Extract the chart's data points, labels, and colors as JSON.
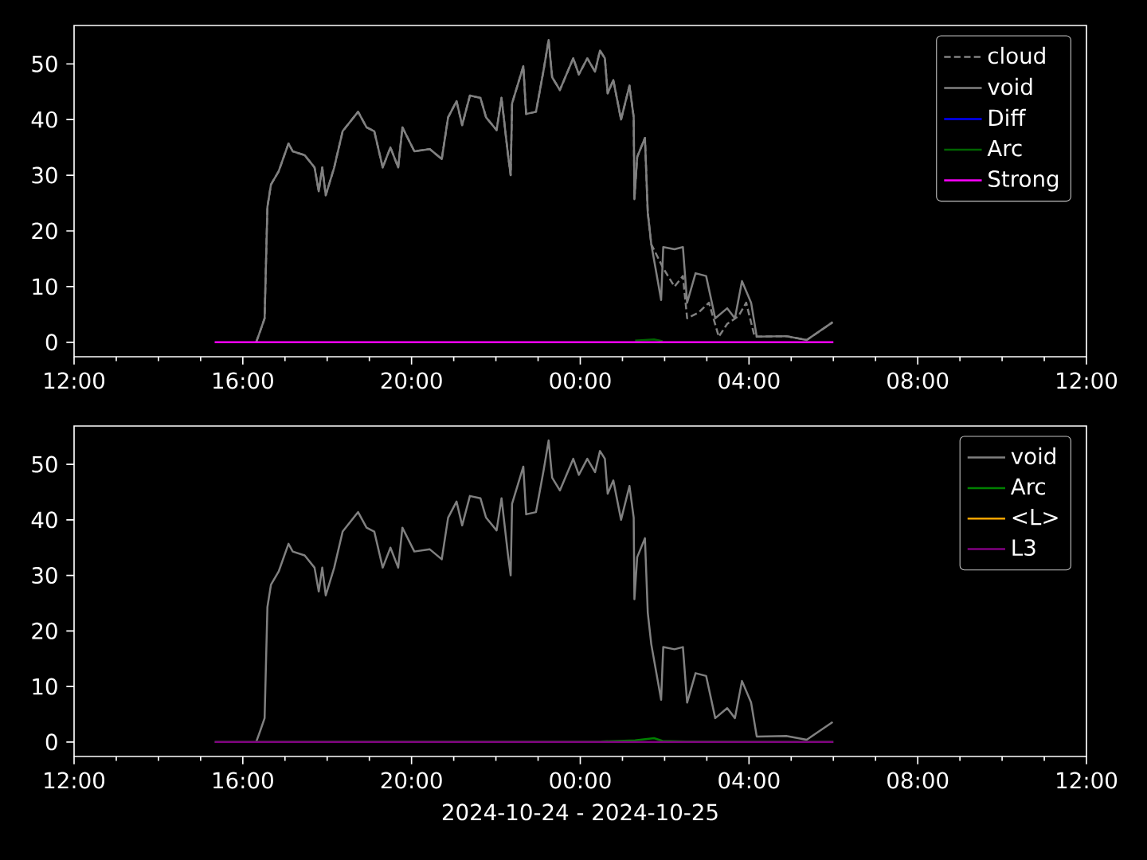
{
  "chart_data": [
    {
      "type": "line",
      "xlim": [
        "2024-10-24T12:00",
        "2024-10-25T12:00"
      ],
      "ylim": [
        -2.6,
        56.9
      ],
      "xticks": [
        {
          "value": "2024-10-24T12:00",
          "label": "12:00"
        },
        {
          "value": "2024-10-24T16:00",
          "label": "16:00"
        },
        {
          "value": "2024-10-24T20:00",
          "label": "20:00"
        },
        {
          "value": "2024-10-25T00:00",
          "label": "00:00"
        },
        {
          "value": "2024-10-25T04:00",
          "label": "04:00"
        },
        {
          "value": "2024-10-25T08:00",
          "label": "08:00"
        },
        {
          "value": "2024-10-25T12:00",
          "label": "12:00"
        }
      ],
      "yticks": [
        0,
        10,
        20,
        30,
        40,
        50
      ],
      "legend": "top right",
      "series": [
        {
          "name": "cloud",
          "color": "#808080",
          "line_style": "dashed",
          "x": [
            "2024-10-24T16:19",
            "2024-10-24T16:25",
            "2024-10-24T16:31",
            "2024-10-24T16:35",
            "2024-10-24T16:40",
            "2024-10-24T16:51",
            "2024-10-24T17:05",
            "2024-10-24T17:11",
            "2024-10-24T17:28",
            "2024-10-24T17:42",
            "2024-10-24T17:48",
            "2024-10-24T17:53",
            "2024-10-24T17:58",
            "2024-10-24T18:10",
            "2024-10-24T18:22",
            "2024-10-24T18:44",
            "2024-10-24T18:56",
            "2024-10-24T19:07",
            "2024-10-24T19:19",
            "2024-10-24T19:30",
            "2024-10-24T19:41",
            "2024-10-24T19:47",
            "2024-10-24T20:04",
            "2024-10-24T20:26",
            "2024-10-24T20:43",
            "2024-10-24T20:52",
            "2024-10-24T21:04",
            "2024-10-24T21:12",
            "2024-10-24T21:23",
            "2024-10-24T21:38",
            "2024-10-24T21:46",
            "2024-10-24T22:01",
            "2024-10-24T22:08",
            "2024-10-24T22:17",
            "2024-10-24T22:21",
            "2024-10-24T22:23",
            "2024-10-24T22:39",
            "2024-10-24T22:43",
            "2024-10-24T22:57",
            "2024-10-24T23:08",
            "2024-10-24T23:15",
            "2024-10-24T23:20",
            "2024-10-24T23:31",
            "2024-10-24T23:50",
            "2024-10-24T23:58",
            "2024-10-25T00:10",
            "2024-10-25T00:21",
            "2024-10-25T00:28",
            "2024-10-25T00:35",
            "2024-10-25T00:39",
            "2024-10-25T00:47",
            "2024-10-25T00:58",
            "2024-10-25T01:10",
            "2024-10-25T01:16",
            "2024-10-25T01:17",
            "2024-10-25T01:21",
            "2024-10-25T01:32",
            "2024-10-25T01:36",
            "2024-10-25T01:41",
            "2024-10-25T01:58",
            "2024-10-25T02:14",
            "2024-10-25T02:26",
            "2024-10-25T02:32",
            "2024-10-25T02:48",
            "2024-10-25T03:03",
            "2024-10-25T03:17",
            "2024-10-25T03:29",
            "2024-10-25T03:45",
            "2024-10-25T03:56",
            "2024-10-25T04:08",
            "2024-10-25T04:53",
            "2024-10-25T05:22",
            "2024-10-25T05:59"
          ],
          "values": [
            0,
            2.1,
            4.3,
            24.3,
            28.3,
            30.7,
            35.7,
            34.3,
            33.6,
            31.4,
            27.1,
            31.4,
            26.4,
            31.4,
            37.9,
            41.4,
            38.6,
            37.9,
            31.4,
            35.0,
            31.4,
            38.6,
            34.3,
            34.7,
            32.9,
            40.4,
            43.3,
            39.0,
            44.3,
            43.9,
            40.4,
            38.1,
            43.9,
            33.9,
            30.0,
            42.9,
            49.6,
            41.0,
            41.4,
            49.0,
            54.3,
            47.6,
            45.3,
            51.0,
            48.1,
            51.0,
            48.6,
            52.4,
            51.0,
            44.7,
            47.1,
            40.0,
            46.1,
            40.4,
            25.7,
            33.3,
            36.7,
            23.3,
            17.6,
            13.3,
            10.0,
            11.9,
            4.3,
            5.3,
            7.1,
            1.0,
            3.3,
            4.7,
            7.1,
            1.0,
            1.1,
            0.4,
            3.6
          ]
        },
        {
          "name": "void",
          "color": "#808080",
          "x": [
            "2024-10-24T16:19",
            "2024-10-24T16:25",
            "2024-10-24T16:31",
            "2024-10-24T16:35",
            "2024-10-24T16:40",
            "2024-10-24T16:51",
            "2024-10-24T17:05",
            "2024-10-24T17:11",
            "2024-10-24T17:28",
            "2024-10-24T17:42",
            "2024-10-24T17:48",
            "2024-10-24T17:53",
            "2024-10-24T17:58",
            "2024-10-24T18:10",
            "2024-10-24T18:22",
            "2024-10-24T18:44",
            "2024-10-24T18:56",
            "2024-10-24T19:07",
            "2024-10-24T19:19",
            "2024-10-24T19:30",
            "2024-10-24T19:41",
            "2024-10-24T19:47",
            "2024-10-24T20:04",
            "2024-10-24T20:26",
            "2024-10-24T20:43",
            "2024-10-24T20:52",
            "2024-10-24T21:04",
            "2024-10-24T21:12",
            "2024-10-24T21:23",
            "2024-10-24T21:38",
            "2024-10-24T21:46",
            "2024-10-24T22:01",
            "2024-10-24T22:08",
            "2024-10-24T22:17",
            "2024-10-24T22:21",
            "2024-10-24T22:23",
            "2024-10-24T22:39",
            "2024-10-24T22:43",
            "2024-10-24T22:57",
            "2024-10-24T23:08",
            "2024-10-24T23:15",
            "2024-10-24T23:20",
            "2024-10-24T23:31",
            "2024-10-24T23:50",
            "2024-10-24T23:58",
            "2024-10-25T00:10",
            "2024-10-25T00:21",
            "2024-10-25T00:28",
            "2024-10-25T00:35",
            "2024-10-25T00:39",
            "2024-10-25T00:47",
            "2024-10-25T00:58",
            "2024-10-25T01:10",
            "2024-10-25T01:16",
            "2024-10-25T01:17",
            "2024-10-25T01:21",
            "2024-10-25T01:32",
            "2024-10-25T01:36",
            "2024-10-25T01:41",
            "2024-10-25T01:55",
            "2024-10-25T01:58",
            "2024-10-25T02:14",
            "2024-10-25T02:26",
            "2024-10-25T02:32",
            "2024-10-25T02:44",
            "2024-10-25T02:59",
            "2024-10-25T03:12",
            "2024-10-25T03:29",
            "2024-10-25T03:40",
            "2024-10-25T03:50",
            "2024-10-25T04:03",
            "2024-10-25T04:11",
            "2024-10-25T04:53",
            "2024-10-25T05:22",
            "2024-10-25T05:59"
          ],
          "values": [
            0,
            2.1,
            4.3,
            24.3,
            28.3,
            30.7,
            35.7,
            34.3,
            33.6,
            31.4,
            27.1,
            31.4,
            26.4,
            31.4,
            37.9,
            41.4,
            38.6,
            37.9,
            31.4,
            35.0,
            31.4,
            38.6,
            34.3,
            34.7,
            32.9,
            40.4,
            43.3,
            39.0,
            44.3,
            43.9,
            40.4,
            38.1,
            43.9,
            33.9,
            30.0,
            42.9,
            49.6,
            41.0,
            41.4,
            49.0,
            54.3,
            47.6,
            45.3,
            51.0,
            48.1,
            51.0,
            48.6,
            52.4,
            51.0,
            44.7,
            47.1,
            40.0,
            46.1,
            40.4,
            25.7,
            33.3,
            36.7,
            23.3,
            17.6,
            7.6,
            17.1,
            16.7,
            17.1,
            7.1,
            12.4,
            11.9,
            4.3,
            6.1,
            4.3,
            11.0,
            7.1,
            1.0,
            1.1,
            0.4,
            3.6
          ]
        },
        {
          "name": "Diff",
          "color": "#0000ff"
        },
        {
          "name": "Arc",
          "color": "#006400",
          "x": [
            "2024-10-25T01:18",
            "2024-10-25T01:45",
            "2024-10-25T01:57"
          ],
          "values": [
            0.3,
            0.5,
            0.2
          ]
        },
        {
          "name": "Strong",
          "color": "#ff00ff",
          "x": [
            "2024-10-24T15:20",
            "2024-10-25T06:00"
          ],
          "values": [
            0,
            0
          ]
        }
      ]
    },
    {
      "type": "line",
      "xlim": [
        "2024-10-24T12:00",
        "2024-10-25T12:00"
      ],
      "ylim": [
        -2.6,
        56.9
      ],
      "xlabel": "2024-10-24 - 2024-10-25",
      "xticks": [
        {
          "value": "2024-10-24T12:00",
          "label": "12:00"
        },
        {
          "value": "2024-10-24T16:00",
          "label": "16:00"
        },
        {
          "value": "2024-10-24T20:00",
          "label": "20:00"
        },
        {
          "value": "2024-10-25T00:00",
          "label": "00:00"
        },
        {
          "value": "2024-10-25T04:00",
          "label": "04:00"
        },
        {
          "value": "2024-10-25T08:00",
          "label": "08:00"
        },
        {
          "value": "2024-10-25T12:00",
          "label": "12:00"
        }
      ],
      "yticks": [
        0,
        10,
        20,
        30,
        40,
        50
      ],
      "legend": "top right",
      "series": [
        {
          "name": "void",
          "color": "#808080",
          "x": [
            "2024-10-24T16:19",
            "2024-10-24T16:25",
            "2024-10-24T16:31",
            "2024-10-24T16:35",
            "2024-10-24T16:40",
            "2024-10-24T16:51",
            "2024-10-24T17:05",
            "2024-10-24T17:11",
            "2024-10-24T17:28",
            "2024-10-24T17:42",
            "2024-10-24T17:48",
            "2024-10-24T17:53",
            "2024-10-24T17:58",
            "2024-10-24T18:10",
            "2024-10-24T18:22",
            "2024-10-24T18:44",
            "2024-10-24T18:56",
            "2024-10-24T19:07",
            "2024-10-24T19:19",
            "2024-10-24T19:30",
            "2024-10-24T19:41",
            "2024-10-24T19:47",
            "2024-10-24T20:04",
            "2024-10-24T20:26",
            "2024-10-24T20:43",
            "2024-10-24T20:52",
            "2024-10-24T21:04",
            "2024-10-24T21:12",
            "2024-10-24T21:23",
            "2024-10-24T21:38",
            "2024-10-24T21:46",
            "2024-10-24T22:01",
            "2024-10-24T22:08",
            "2024-10-24T22:17",
            "2024-10-24T22:21",
            "2024-10-24T22:23",
            "2024-10-24T22:39",
            "2024-10-24T22:43",
            "2024-10-24T22:57",
            "2024-10-24T23:08",
            "2024-10-24T23:15",
            "2024-10-24T23:20",
            "2024-10-24T23:31",
            "2024-10-24T23:50",
            "2024-10-24T23:58",
            "2024-10-25T00:10",
            "2024-10-25T00:21",
            "2024-10-25T00:28",
            "2024-10-25T00:35",
            "2024-10-25T00:39",
            "2024-10-25T00:47",
            "2024-10-25T00:58",
            "2024-10-25T01:10",
            "2024-10-25T01:16",
            "2024-10-25T01:17",
            "2024-10-25T01:21",
            "2024-10-25T01:32",
            "2024-10-25T01:36",
            "2024-10-25T01:41",
            "2024-10-25T01:55",
            "2024-10-25T01:58",
            "2024-10-25T02:14",
            "2024-10-25T02:26",
            "2024-10-25T02:32",
            "2024-10-25T02:44",
            "2024-10-25T02:59",
            "2024-10-25T03:12",
            "2024-10-25T03:29",
            "2024-10-25T03:40",
            "2024-10-25T03:50",
            "2024-10-25T04:03",
            "2024-10-25T04:11",
            "2024-10-25T04:53",
            "2024-10-25T05:22",
            "2024-10-25T05:59"
          ],
          "values": [
            0,
            2.1,
            4.3,
            24.3,
            28.3,
            30.7,
            35.7,
            34.3,
            33.6,
            31.4,
            27.1,
            31.4,
            26.4,
            31.4,
            37.9,
            41.4,
            38.6,
            37.9,
            31.4,
            35.0,
            31.4,
            38.6,
            34.3,
            34.7,
            32.9,
            40.4,
            43.3,
            39.0,
            44.3,
            43.9,
            40.4,
            38.1,
            43.9,
            33.9,
            30.0,
            42.9,
            49.6,
            41.0,
            41.4,
            49.0,
            54.3,
            47.6,
            45.3,
            51.0,
            48.1,
            51.0,
            48.6,
            52.4,
            51.0,
            44.7,
            47.1,
            40.0,
            46.1,
            40.4,
            25.7,
            33.3,
            36.7,
            23.3,
            17.6,
            7.6,
            17.1,
            16.7,
            17.1,
            7.1,
            12.4,
            11.9,
            4.3,
            6.1,
            4.3,
            11.0,
            7.1,
            1.0,
            1.1,
            0.4,
            3.6
          ]
        },
        {
          "name": "Arc",
          "color": "#008000",
          "x": [
            "2024-10-24T15:20",
            "2024-10-25T00:30",
            "2024-10-25T01:18",
            "2024-10-25T01:45",
            "2024-10-25T01:57",
            "2024-10-25T02:30",
            "2024-10-25T06:00"
          ],
          "values": [
            0,
            0.1,
            0.3,
            0.7,
            0.2,
            0.1,
            0
          ]
        },
        {
          "name": "<L>",
          "color": "#ffa500"
        },
        {
          "name": "L3",
          "color": "#800080",
          "x": [
            "2024-10-24T15:20",
            "2024-10-25T06:00"
          ],
          "values": [
            0,
            0
          ]
        }
      ]
    }
  ]
}
